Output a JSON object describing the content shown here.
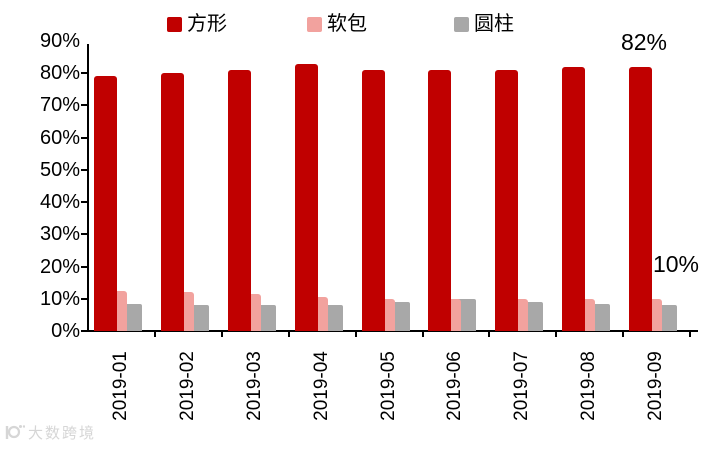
{
  "chart_data": {
    "type": "bar",
    "title": "",
    "categories": [
      "2019-01",
      "2019-02",
      "2019-03",
      "2019-04",
      "2019-05",
      "2019-06",
      "2019-07",
      "2019-08",
      "2019-09"
    ],
    "series": [
      {
        "name": "方形",
        "color": "#C00000",
        "values": [
          79,
          80,
          81,
          83,
          81,
          81,
          81,
          82,
          82
        ]
      },
      {
        "name": "软包",
        "color": "#F2A29E",
        "values": [
          12.5,
          12,
          11.5,
          10.5,
          10,
          10,
          10,
          10,
          10
        ]
      },
      {
        "name": "圆柱",
        "color": "#A8A8A8",
        "values": [
          8.5,
          8,
          8,
          8,
          9,
          10,
          9,
          8.5,
          8
        ]
      }
    ],
    "xlabel": "",
    "ylabel": "",
    "ylim": [
      0,
      90
    ],
    "ytick_labels": [
      "0%",
      "10%",
      "20%",
      "30%",
      "40%",
      "50%",
      "60%",
      "70%",
      "80%",
      "90%"
    ],
    "grid": false,
    "legend_position": "top",
    "annotations": [
      {
        "text": "82%",
        "series": "方形",
        "category": "2019-09"
      },
      {
        "text": "10%",
        "series": "软包",
        "category": "2019-09"
      }
    ]
  },
  "watermark": {
    "logo": "dashukuajing-logo",
    "text": "大数跨境"
  }
}
